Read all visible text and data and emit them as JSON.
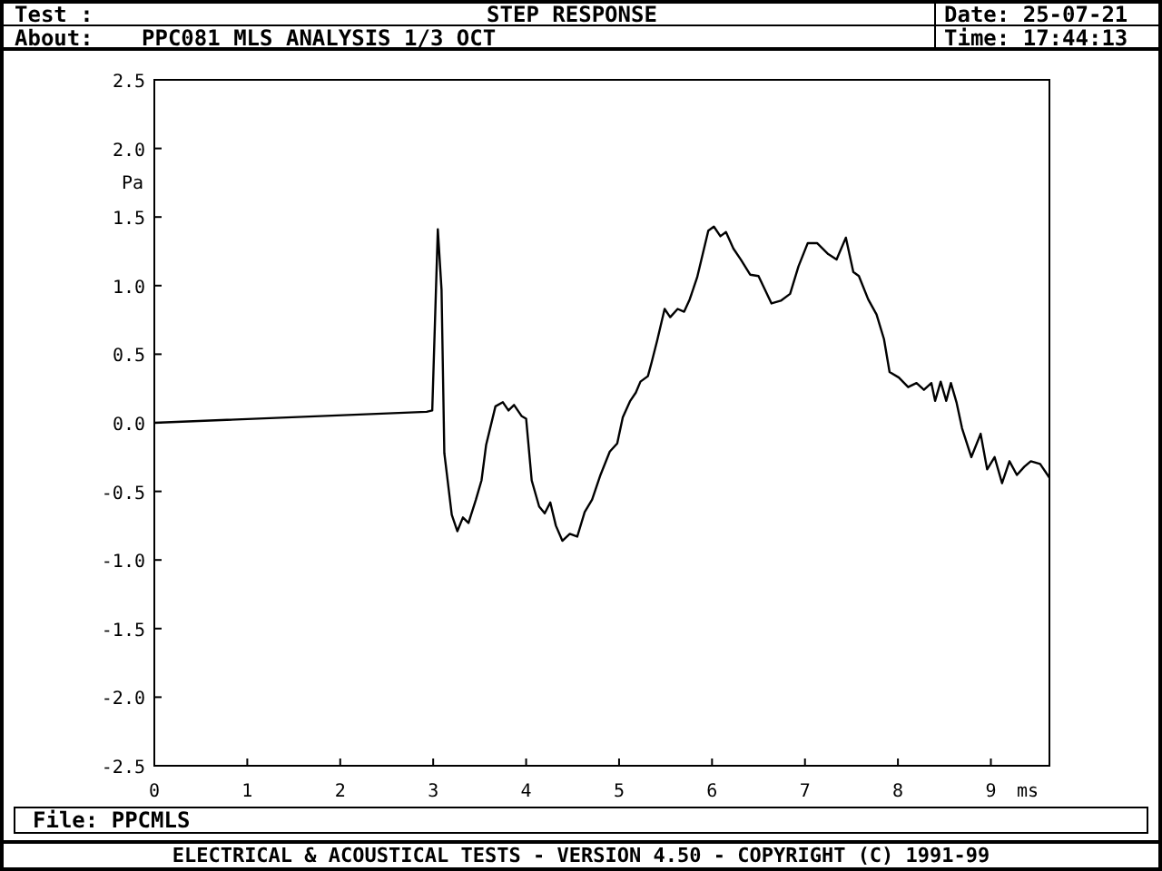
{
  "chart_data": {
    "type": "line",
    "title": "STEP RESPONSE",
    "subtitle": "PPC081 MLS ANALYSIS 1/3 OCT",
    "xlabel": "ms",
    "ylabel": "Pa",
    "annotations": [
      "Test :",
      "About:",
      "Date: 25-07-21",
      "Time: 17:44:13",
      "File: PPCMLS",
      "ELECTRICAL & ACOUSTICAL TESTS  -  VERSION 4.50  -  COPYRIGHT (C) 1991-99"
    ],
    "xlim": [
      0,
      9.63
    ],
    "xticks": [
      0,
      1,
      2,
      3,
      4,
      5,
      6,
      7,
      8,
      9
    ],
    "ylim": [
      -2.5,
      2.5
    ],
    "yticks": [
      {
        "value": -2.5,
        "label": "-2.5"
      },
      {
        "value": -2,
        "label": "-2.0"
      },
      {
        "value": -1.5,
        "label": "-1.5"
      },
      {
        "value": -1,
        "label": "-1.0"
      },
      {
        "value": -0.5,
        "label": "-0.5"
      },
      {
        "value": 0,
        "label": "0.0"
      },
      {
        "value": 0.5,
        "label": "0.5"
      },
      {
        "value": 1,
        "label": "1.0"
      },
      {
        "value": 1.5,
        "label": "1.5"
      },
      {
        "value": 2,
        "label": "2.0"
      },
      {
        "value": 2.5,
        "label": "2.5"
      }
    ],
    "grid": false,
    "line_style": "solid",
    "series": [
      {
        "color": "#000000",
        "x": [
          0,
          2.93,
          2.99,
          3.05,
          3.09,
          3.12,
          3.2,
          3.26,
          3.32,
          3.38,
          3.46,
          3.52,
          3.57,
          3.67,
          3.75,
          3.81,
          3.87,
          3.95,
          4.0,
          4.06,
          4.14,
          4.2,
          4.26,
          4.32,
          4.39,
          4.47,
          4.55,
          4.63,
          4.71,
          4.8,
          4.9,
          4.98,
          5.04,
          5.12,
          5.18,
          5.23,
          5.31,
          5.35,
          5.41,
          5.49,
          5.55,
          5.63,
          5.7,
          5.76,
          5.84,
          5.9,
          5.96,
          6.02,
          6.09,
          6.15,
          6.23,
          6.31,
          6.41,
          6.5,
          6.64,
          6.74,
          6.84,
          6.93,
          7.03,
          7.13,
          7.25,
          7.34,
          7.44,
          7.52,
          7.58,
          7.68,
          7.77,
          7.85,
          7.91,
          8.01,
          8.11,
          8.2,
          8.28,
          8.36,
          8.4,
          8.46,
          8.52,
          8.57,
          8.63,
          8.69,
          8.79,
          8.89,
          8.96,
          9.04,
          9.12,
          9.2,
          9.28,
          9.36,
          9.43,
          9.53,
          9.63
        ],
        "values": [
          0,
          0.08,
          0.09,
          1.41,
          0.97,
          -0.22,
          -0.67,
          -0.79,
          -0.69,
          -0.73,
          -0.56,
          -0.42,
          -0.16,
          0.12,
          0.15,
          0.09,
          0.13,
          0.05,
          0.03,
          -0.42,
          -0.61,
          -0.66,
          -0.58,
          -0.75,
          -0.86,
          -0.81,
          -0.83,
          -0.65,
          -0.56,
          -0.38,
          -0.21,
          -0.15,
          0.04,
          0.16,
          0.22,
          0.3,
          0.34,
          0.44,
          0.6,
          0.83,
          0.77,
          0.83,
          0.81,
          0.9,
          1.06,
          1.23,
          1.4,
          1.43,
          1.36,
          1.39,
          1.27,
          1.19,
          1.08,
          1.07,
          0.87,
          0.89,
          0.94,
          1.14,
          1.31,
          1.31,
          1.23,
          1.19,
          1.35,
          1.1,
          1.07,
          0.9,
          0.79,
          0.61,
          0.37,
          0.33,
          0.26,
          0.29,
          0.24,
          0.29,
          0.16,
          0.3,
          0.16,
          0.29,
          0.15,
          -0.04,
          -0.25,
          -0.08,
          -0.34,
          -0.25,
          -0.44,
          -0.28,
          -0.38,
          -0.32,
          -0.28,
          -0.3,
          -0.4
        ]
      }
    ]
  }
}
